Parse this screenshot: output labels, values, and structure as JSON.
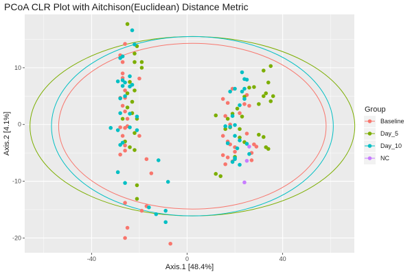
{
  "chart_data": {
    "type": "scatter",
    "title": "PCoA CLR Plot with Aitchison(Euclidean) Distance Metric",
    "xlabel": "Axis.1   [48.4%]",
    "ylabel": "Axis.2   [4.1%]",
    "xlim": [
      -68,
      70
    ],
    "ylim": [
      -22.6,
      19.4
    ],
    "xticks": [
      -40,
      0,
      40
    ],
    "yticks": [
      -20,
      -10,
      0,
      10
    ],
    "grid": true,
    "legend": {
      "title": "Group",
      "position": "right"
    },
    "series": [
      {
        "name": "Baseline",
        "color": "#F8766D",
        "points": [
          [
            -26,
            14.2
          ],
          [
            -28,
            12.2
          ],
          [
            -27,
            11
          ],
          [
            -27,
            9
          ],
          [
            -27,
            8.2
          ],
          [
            -26,
            6
          ],
          [
            -28,
            4.7
          ],
          [
            -26,
            4.7
          ],
          [
            -27,
            3.3
          ],
          [
            -26,
            2.3
          ],
          [
            -25,
            1
          ],
          [
            -25,
            -0.3
          ],
          [
            -28,
            -0.5
          ],
          [
            -26,
            -0.6
          ],
          [
            -27,
            -2
          ],
          [
            -26,
            -3.7
          ],
          [
            -20,
            8.1
          ],
          [
            -20,
            -2
          ],
          [
            -26,
            -4.6
          ],
          [
            -28,
            -5.3
          ],
          [
            -17,
            -6.1
          ],
          [
            -15,
            -8.6
          ],
          [
            -26,
            -13.8
          ],
          [
            -25,
            -18.2
          ],
          [
            -26,
            -20
          ],
          [
            -19,
            -15.2
          ],
          [
            -17,
            -14.4
          ],
          [
            -7,
            -21
          ],
          [
            15,
            4.5
          ],
          [
            17,
            3.8
          ],
          [
            19,
            6.3
          ],
          [
            16,
            1.5
          ],
          [
            18,
            0
          ],
          [
            15,
            -2
          ],
          [
            17,
            -3
          ],
          [
            18,
            -3.5
          ],
          [
            20,
            -4
          ],
          [
            15,
            -5.4
          ],
          [
            17,
            -5.8
          ],
          [
            19,
            -6.5
          ],
          [
            20,
            -4.8
          ],
          [
            16,
            -7
          ],
          [
            22,
            2
          ],
          [
            24,
            3.6
          ],
          [
            25,
            5.2
          ],
          [
            26,
            3.3
          ],
          [
            25,
            -1.6
          ],
          [
            28,
            -3.5
          ],
          [
            29,
            -3.9
          ],
          [
            27,
            -5
          ],
          [
            27,
            -6.3
          ]
        ]
      },
      {
        "name": "Day_5",
        "color": "#7CAE00",
        "points": [
          [
            -25,
            17.7
          ],
          [
            -22,
            12.5
          ],
          [
            -21,
            13.8
          ],
          [
            -19,
            11
          ],
          [
            -19,
            10
          ],
          [
            -22,
            11
          ],
          [
            -24,
            7.5
          ],
          [
            -22,
            6
          ],
          [
            -25,
            5.5
          ],
          [
            -23,
            4
          ],
          [
            -25,
            3
          ],
          [
            -23,
            2
          ],
          [
            -27,
            1
          ],
          [
            -21,
            1
          ],
          [
            -22,
            -1.5
          ],
          [
            -24,
            -4
          ],
          [
            -26,
            -3
          ],
          [
            -22,
            -4.5
          ],
          [
            -21,
            -10.7
          ],
          [
            -21,
            -13.1
          ],
          [
            12,
            1.6
          ],
          [
            17,
            1
          ],
          [
            19,
            1.9
          ],
          [
            21,
            2.8
          ],
          [
            23,
            1.4
          ],
          [
            16,
            -0.8
          ],
          [
            18,
            -0.5
          ],
          [
            22,
            -0.8
          ],
          [
            22,
            -2.3
          ],
          [
            24,
            -3.1
          ],
          [
            20,
            -5.7
          ],
          [
            12,
            -8.7
          ],
          [
            14,
            -9.1
          ],
          [
            24,
            4.9
          ],
          [
            26,
            6.5
          ],
          [
            28,
            6.6
          ],
          [
            30,
            3.6
          ],
          [
            32,
            5
          ],
          [
            35,
            4.1
          ],
          [
            36,
            5
          ],
          [
            33,
            5.5
          ],
          [
            34,
            7.4
          ],
          [
            32,
            9.5
          ],
          [
            35,
            10.3
          ],
          [
            30,
            -1.8
          ],
          [
            32,
            -2.2
          ],
          [
            33,
            -4
          ],
          [
            34,
            -4.3
          ]
        ]
      },
      {
        "name": "Day_10",
        "color": "#00BFC4",
        "points": [
          [
            -23,
            16.6
          ],
          [
            -22,
            14.1
          ],
          [
            -28,
            11.7
          ],
          [
            -27,
            12
          ],
          [
            -29,
            7.6
          ],
          [
            -27,
            7.8
          ],
          [
            -26,
            7.4
          ],
          [
            -24,
            6.7
          ],
          [
            -23,
            7
          ],
          [
            -27,
            6.8
          ],
          [
            -24,
            8.5
          ],
          [
            -28,
            4.6
          ],
          [
            -26,
            5
          ],
          [
            -28,
            2
          ],
          [
            -24,
            1.9
          ],
          [
            -21,
            1.4
          ],
          [
            -32,
            -0.6
          ],
          [
            -29,
            -1
          ],
          [
            -21,
            -1
          ],
          [
            -24,
            -0.5
          ],
          [
            -28,
            -3.6
          ],
          [
            -27,
            -3.2
          ],
          [
            -29,
            -8.4
          ],
          [
            -26,
            -10.3
          ],
          [
            -12,
            -6.3
          ],
          [
            -13,
            -15.8
          ],
          [
            -16,
            -14.6
          ],
          [
            -9,
            -15.2
          ],
          [
            -9,
            -17.2
          ],
          [
            -8,
            -10.1
          ],
          [
            16,
            -0.3
          ],
          [
            18,
            -0.4
          ],
          [
            20,
            -0.1
          ],
          [
            19,
            1.5
          ],
          [
            22,
            3.4
          ],
          [
            24,
            4.5
          ],
          [
            23,
            5.8
          ],
          [
            24,
            6.3
          ],
          [
            24,
            8
          ],
          [
            25,
            7.9
          ],
          [
            23,
            9.2
          ],
          [
            18,
            5.8
          ],
          [
            20,
            6.3
          ],
          [
            20,
            -2
          ],
          [
            17,
            -3.3
          ],
          [
            22,
            -2.8
          ],
          [
            25,
            -3.4
          ],
          [
            21,
            -4.2
          ],
          [
            20,
            -5.9
          ],
          [
            22,
            -7.1
          ],
          [
            20,
            -6.1
          ],
          [
            26,
            -5.2
          ],
          [
            19,
            -6.6
          ]
        ]
      },
      {
        "name": "NC",
        "color": "#C77CFF",
        "points": [
          [
            24,
            -10.2
          ],
          [
            25,
            -6.4
          ],
          [
            26,
            -3.9
          ]
        ]
      }
    ],
    "ellipses": [
      {
        "group": "Baseline",
        "color": "#F8766D",
        "cx": 2.2,
        "cy": -0.3,
        "rx": 56,
        "ry": 14.6
      },
      {
        "group": "Day_5",
        "color": "#7CAE00",
        "cx": 2.2,
        "cy": -0.3,
        "rx": 68,
        "ry": 15.8
      },
      {
        "group": "Day_10",
        "color": "#00BFC4",
        "cx": 2.2,
        "cy": -0.3,
        "rx": 59,
        "ry": 15.8
      }
    ]
  }
}
